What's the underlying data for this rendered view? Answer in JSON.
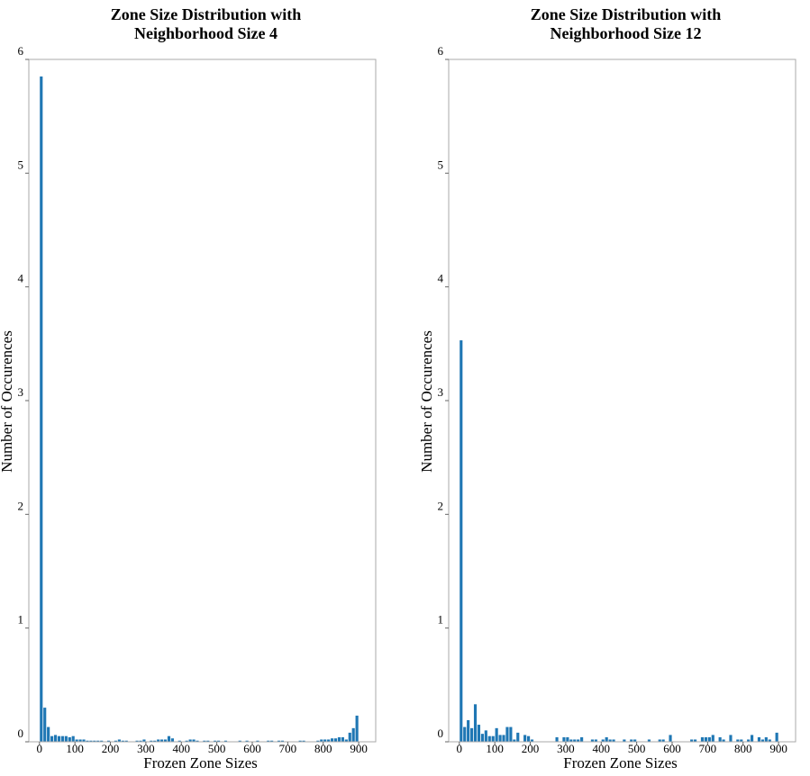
{
  "chart_data": [
    {
      "type": "histogram",
      "title": [
        "Zone Size Distribution with",
        "Neighborhood Size 4"
      ],
      "x_label": "Frozen Zone Sizes",
      "y_label": "Number of Occurences",
      "color": "#1f77b4",
      "bins": [
        0,
        10,
        20,
        30,
        40,
        50,
        60,
        70,
        80,
        90,
        100,
        110,
        120,
        130,
        140,
        150,
        160,
        170,
        180,
        190,
        200,
        210,
        220,
        230,
        240,
        250,
        260,
        270,
        280,
        290,
        300,
        310,
        320,
        330,
        340,
        350,
        360,
        370,
        380,
        390,
        400,
        410,
        420,
        430,
        440,
        450,
        460,
        470,
        480,
        490,
        500,
        510,
        520,
        530,
        540,
        550,
        560,
        570,
        580,
        590,
        600,
        610,
        620,
        630,
        640,
        650,
        660,
        670,
        680,
        690,
        700,
        710,
        720,
        730,
        740,
        750,
        760,
        770,
        780,
        790,
        800,
        810,
        820,
        830,
        840,
        850,
        860,
        870,
        880,
        890,
        900
      ],
      "values": [
        5.85,
        0.3,
        0.13,
        0.05,
        0.06,
        0.05,
        0.05,
        0.05,
        0.04,
        0.05,
        0.02,
        0.02,
        0.02,
        0.01,
        0.01,
        0.01,
        0.01,
        0.01,
        0,
        0.01,
        0,
        0.01,
        0.02,
        0.01,
        0.01,
        0,
        0,
        0.01,
        0.01,
        0.02,
        0,
        0.01,
        0.01,
        0.02,
        0.02,
        0.02,
        0.05,
        0.03,
        0,
        0.01,
        0,
        0.01,
        0.02,
        0.02,
        0.01,
        0,
        0.01,
        0.01,
        0,
        0.01,
        0.01,
        0,
        0.01,
        0,
        0,
        0,
        0.01,
        0,
        0.01,
        0,
        0,
        0.01,
        0,
        0,
        0.01,
        0.01,
        0,
        0.01,
        0.01,
        0,
        0,
        0,
        0,
        0.01,
        0.01,
        0,
        0,
        0,
        0.01,
        0.02,
        0.02,
        0.02,
        0.03,
        0.03,
        0.04,
        0.04,
        0.02,
        0.08,
        0.12,
        0.23
      ],
      "xlim": [
        -30,
        948
      ],
      "xticks": [
        0,
        100,
        200,
        300,
        400,
        500,
        600,
        700,
        800,
        900
      ],
      "ylim": [
        0,
        6
      ],
      "yticks": [
        0,
        1,
        2,
        3,
        4,
        5,
        6
      ]
    },
    {
      "type": "histogram",
      "title": [
        "Zone Size Distribution with",
        "Neighborhood Size 12"
      ],
      "x_label": "Frozen Zone Sizes",
      "y_label": "Number of Occurences",
      "color": "#1f77b4",
      "bins": [
        0,
        10,
        20,
        30,
        40,
        50,
        60,
        70,
        80,
        90,
        100,
        110,
        120,
        130,
        140,
        150,
        160,
        170,
        180,
        190,
        200,
        210,
        220,
        230,
        240,
        250,
        260,
        270,
        280,
        290,
        300,
        310,
        320,
        330,
        340,
        350,
        360,
        370,
        380,
        390,
        400,
        410,
        420,
        430,
        440,
        450,
        460,
        470,
        480,
        490,
        500,
        510,
        520,
        530,
        540,
        550,
        560,
        570,
        580,
        590,
        600,
        610,
        620,
        630,
        640,
        650,
        660,
        670,
        680,
        690,
        700,
        710,
        720,
        730,
        740,
        750,
        760,
        770,
        780,
        790,
        800,
        810,
        820,
        830,
        840,
        850,
        860,
        870,
        880,
        890,
        900
      ],
      "values": [
        3.53,
        0.13,
        0.19,
        0.12,
        0.33,
        0.15,
        0.07,
        0.1,
        0.05,
        0.05,
        0.12,
        0.06,
        0.06,
        0.13,
        0.13,
        0.02,
        0.08,
        0,
        0.06,
        0.05,
        0.02,
        0,
        0,
        0,
        0,
        0,
        0,
        0.04,
        0,
        0.04,
        0.04,
        0.02,
        0.02,
        0.02,
        0.04,
        0,
        0,
        0.02,
        0.02,
        0,
        0.02,
        0.04,
        0.02,
        0.02,
        0,
        0,
        0.02,
        0,
        0.02,
        0.02,
        0,
        0,
        0,
        0.02,
        0,
        0,
        0.02,
        0.02,
        0,
        0.06,
        0,
        0,
        0,
        0,
        0,
        0.02,
        0.02,
        0,
        0.04,
        0.04,
        0.04,
        0.06,
        0,
        0.04,
        0.02,
        0,
        0.06,
        0,
        0.02,
        0.02,
        0,
        0.02,
        0.06,
        0,
        0.04,
        0.02,
        0.04,
        0.02,
        0,
        0.08
      ],
      "xlim": [
        -30,
        948
      ],
      "xticks": [
        0,
        100,
        200,
        300,
        400,
        500,
        600,
        700,
        800,
        900
      ],
      "ylim": [
        0,
        6
      ],
      "yticks": [
        0,
        1,
        2,
        3,
        4,
        5,
        6
      ]
    }
  ]
}
